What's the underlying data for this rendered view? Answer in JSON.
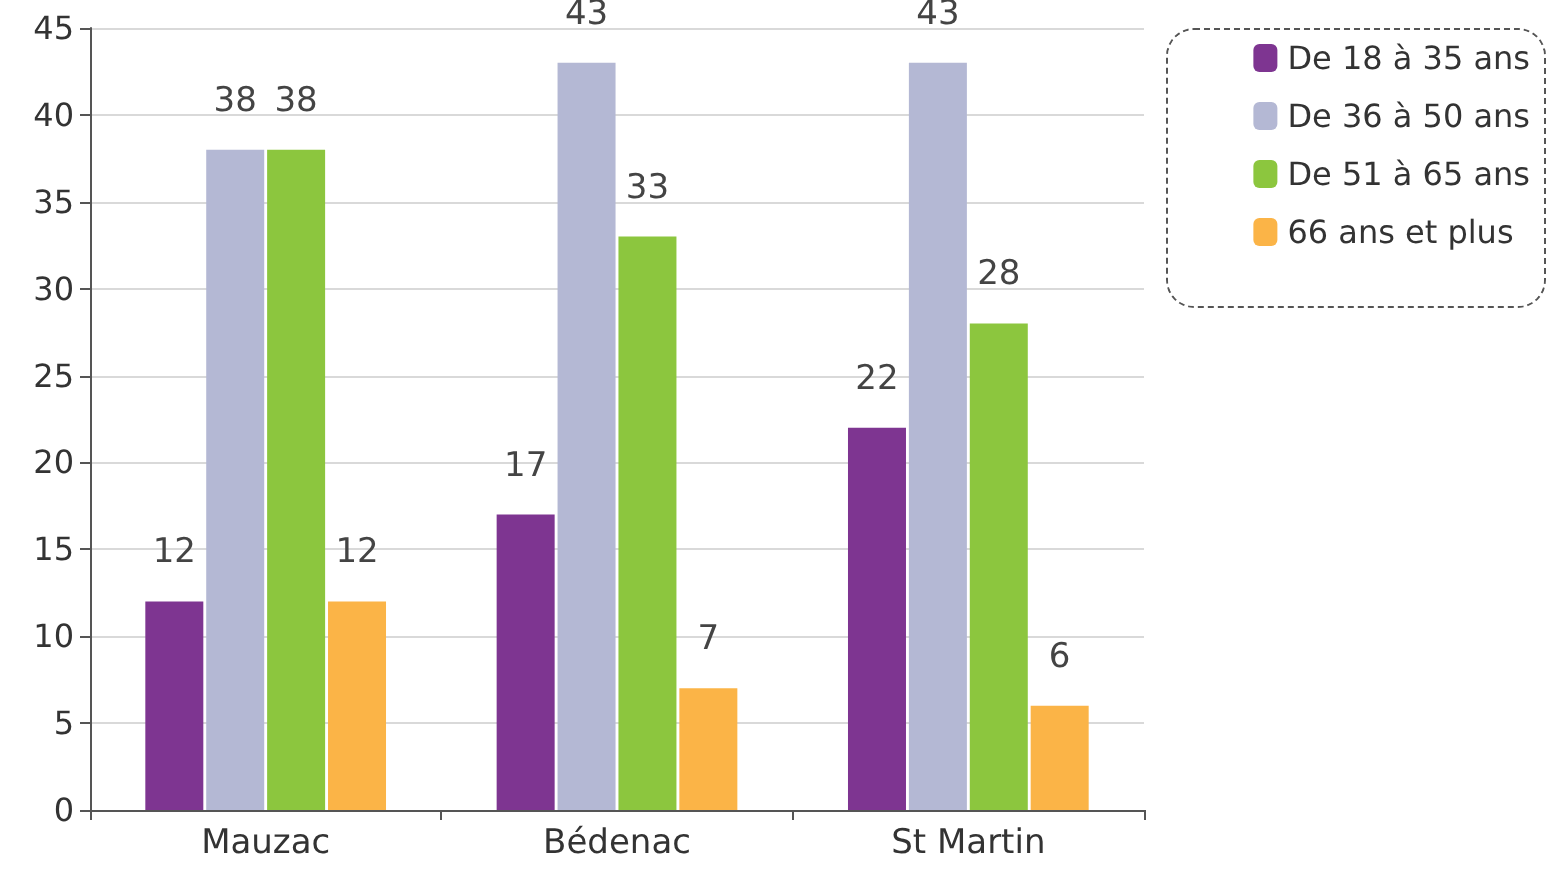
{
  "chart_data": {
    "type": "bar",
    "categories": [
      "Mauzac",
      "Bédenac",
      "St Martin"
    ],
    "series": [
      {
        "name": "De 18 à 35 ans",
        "color": "#7e3591",
        "values": [
          12,
          17,
          22
        ]
      },
      {
        "name": "De 36 à 50 ans",
        "color": "#b4b8d4",
        "values": [
          38,
          43,
          43
        ]
      },
      {
        "name": "De 51 à 65 ans",
        "color": "#8cc63e",
        "values": [
          38,
          33,
          28
        ]
      },
      {
        "name": "66 ans et plus",
        "color": "#fbb447",
        "values": [
          12,
          7,
          6
        ]
      }
    ],
    "ylim": [
      0,
      45
    ],
    "yticks": [
      0,
      5,
      10,
      15,
      20,
      25,
      30,
      35,
      40,
      45
    ],
    "grid": "y",
    "legend": "top right",
    "data_labels": true
  }
}
